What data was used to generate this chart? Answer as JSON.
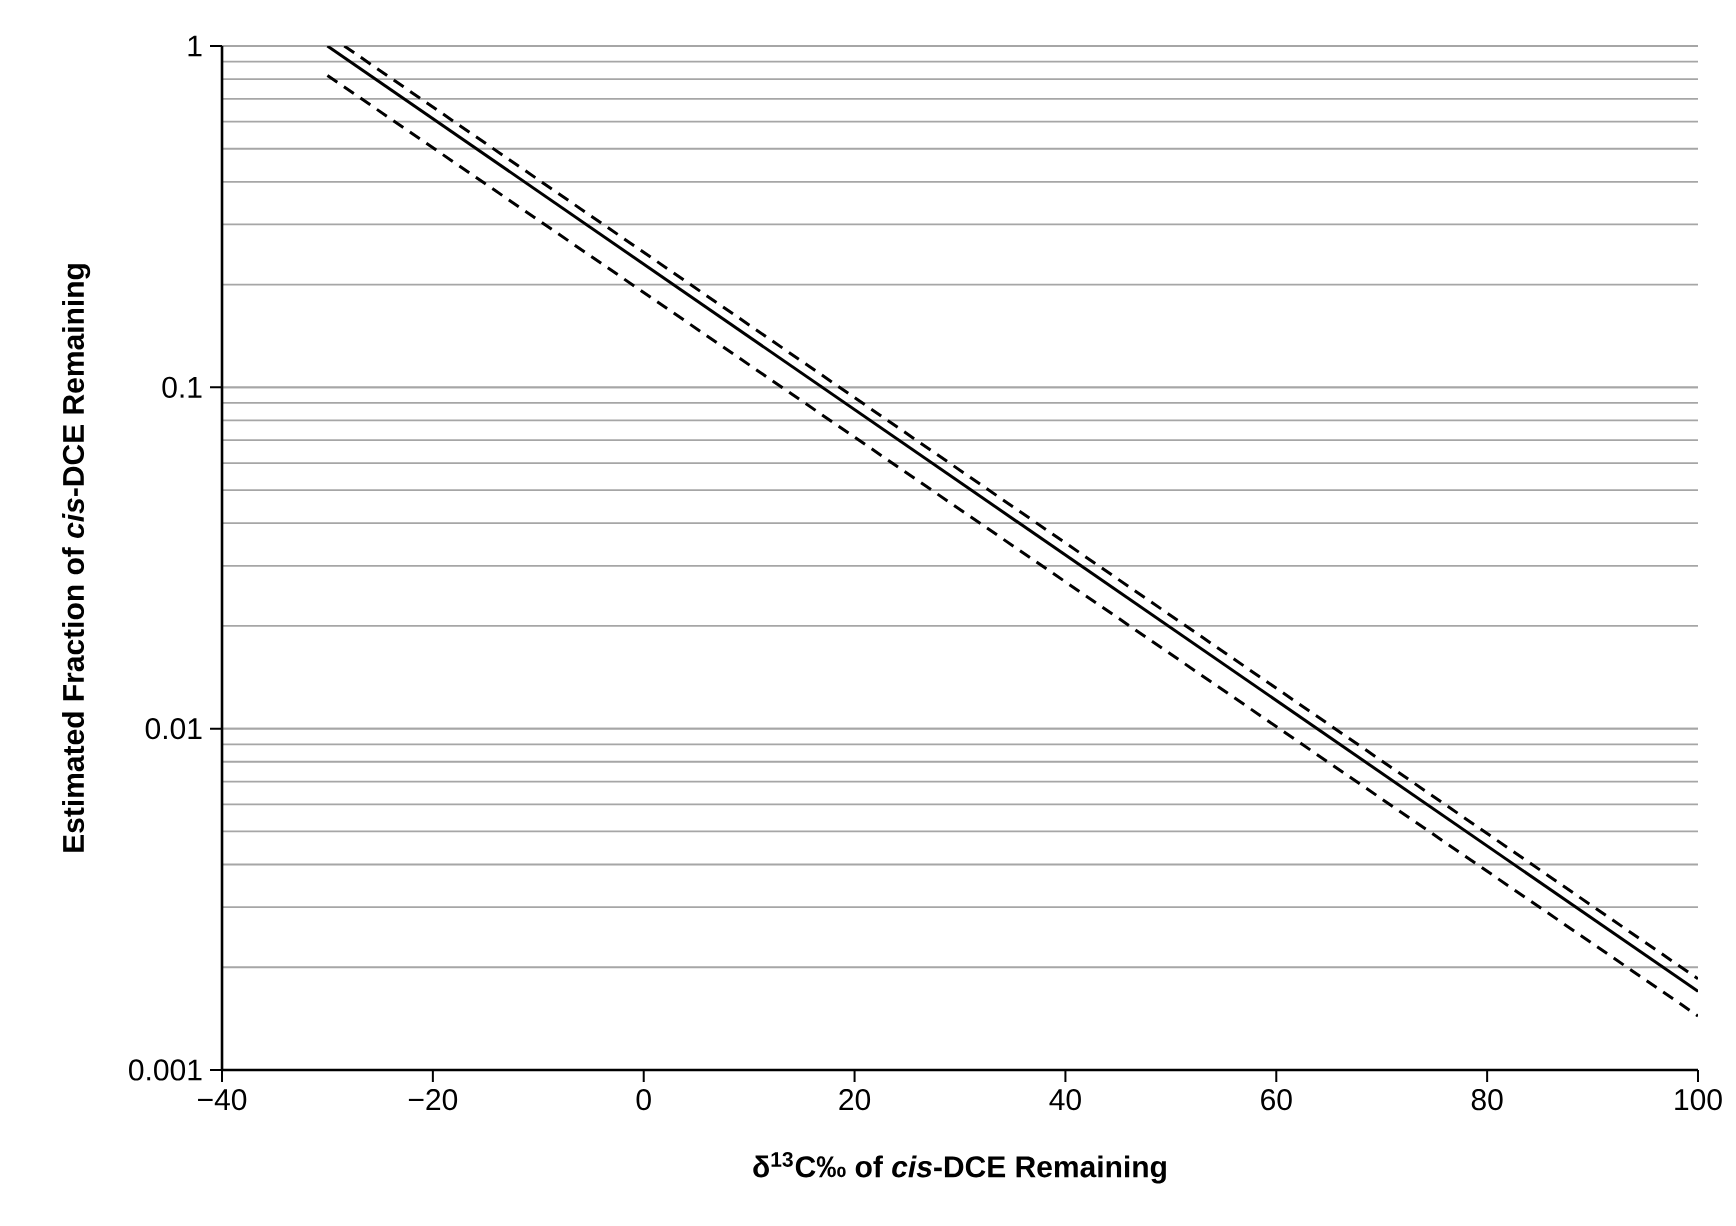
{
  "chart_data": {
    "type": "line",
    "xlabel": "δ$^{13}$C‰ of *cis*-DCE Remaining",
    "ylabel": "Estimated Fraction of *cis*-DCE Remaining",
    "xlim": [
      -40,
      100
    ],
    "xticks": [
      {
        "value": -40,
        "label": "−40"
      },
      {
        "value": -20,
        "label": "−20"
      },
      0,
      20,
      40,
      60,
      80,
      100
    ],
    "ylim": [
      0.001,
      1
    ],
    "yticks": [
      0.001,
      0.01,
      0.1,
      1
    ],
    "log": "y",
    "grid": "y",
    "legend": false,
    "series": [
      {
        "color": "#000000",
        "line_style": "solid",
        "x": [
          -30,
          100
        ],
        "values": [
          1.0,
          0.0017
        ]
      },
      {
        "color": "#000000",
        "line_style": "dashed",
        "x": [
          -28.4,
          100
        ],
        "values": [
          1.0,
          0.00185
        ]
      },
      {
        "color": "#000000",
        "line_style": "dashed",
        "x": [
          -30,
          100
        ],
        "values": [
          0.82,
          0.00144
        ]
      }
    ]
  }
}
